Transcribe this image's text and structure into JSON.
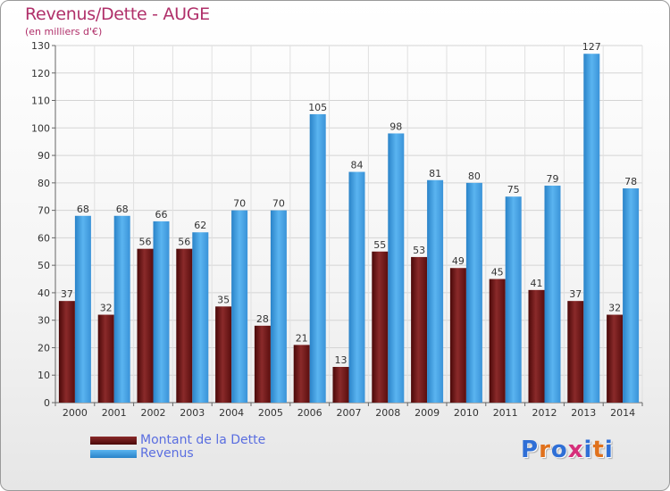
{
  "title": "Revenus/Dette - AUGE",
  "subtitle": "(en milliers d'€)",
  "legend": {
    "debt_label": "Montant de la Dette",
    "revenue_label": "Revenus"
  },
  "logo": {
    "letters": [
      "P",
      "r",
      "o",
      "x",
      "i",
      "t",
      "i"
    ],
    "colors": [
      "#2f6fd6",
      "#e0711c",
      "#2f6fd6",
      "#d62f7a",
      "#2f6fd6",
      "#e0711c",
      "#2f6fd6"
    ]
  },
  "colors": {
    "debt": "#7a1a1a",
    "revenue": "#4aa3e6",
    "title": "#b0306a",
    "legend_text": "#5a6ee0"
  },
  "chart_data": {
    "type": "bar",
    "categories": [
      "2000",
      "2001",
      "2002",
      "2003",
      "2004",
      "2005",
      "2006",
      "2007",
      "2008",
      "2009",
      "2010",
      "2011",
      "2012",
      "2013",
      "2014"
    ],
    "series": [
      {
        "name": "Montant de la Dette",
        "values": [
          37,
          32,
          56,
          56,
          35,
          28,
          21,
          13,
          55,
          53,
          49,
          45,
          41,
          37,
          32
        ]
      },
      {
        "name": "Revenus",
        "values": [
          68,
          68,
          66,
          62,
          70,
          70,
          105,
          84,
          98,
          81,
          80,
          75,
          79,
          127,
          78
        ]
      }
    ],
    "ylim": [
      0,
      130
    ],
    "yticks": [
      0,
      10,
      20,
      30,
      40,
      50,
      60,
      70,
      80,
      90,
      100,
      110,
      120,
      130
    ],
    "grid": true,
    "legend_position": "bottom-left"
  }
}
